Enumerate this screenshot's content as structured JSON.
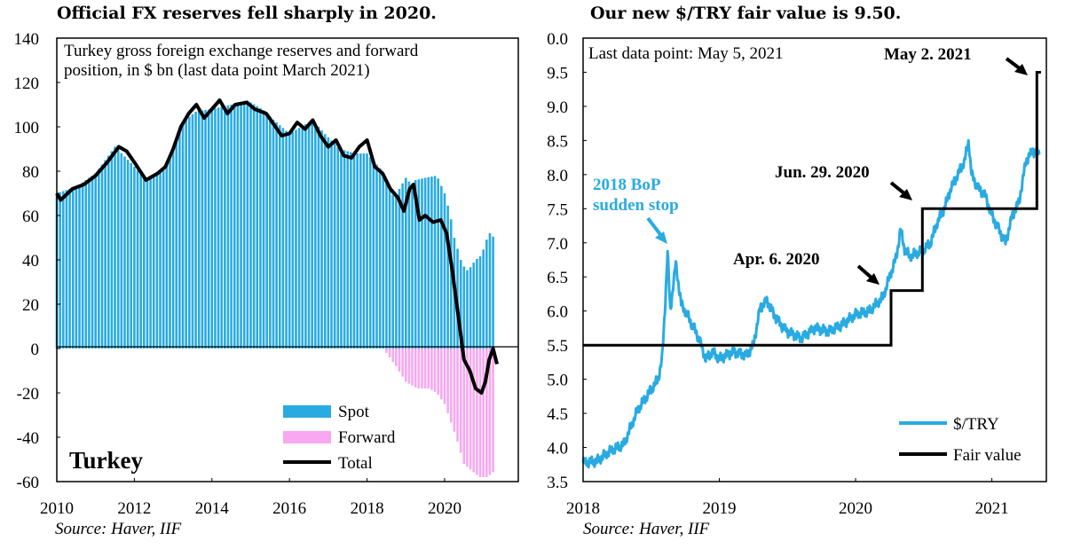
{
  "chart_data": [
    {
      "type": "bar",
      "title": "Official FX reserves fell sharply in 2020.",
      "source": "Source: Haver, IIF",
      "annotation": "Turkey gross foreign exchange reserves and forward position, in $ bn (last data point March 2021)",
      "country_label": "Turkey",
      "xlim": [
        2010,
        2021.9
      ],
      "ylim": [
        -60,
        140
      ],
      "x_ticks": [
        "2010",
        "2012",
        "2014",
        "2016",
        "2018",
        "2020"
      ],
      "y_ticks": [
        "140",
        "120",
        "100",
        "80",
        "60",
        "40",
        "20",
        "0",
        "-20",
        "-40",
        "-60"
      ],
      "grid": false,
      "legend_position": "bottom-right",
      "colors": {
        "spot": "#29abe2",
        "forward": "#f7a8f0",
        "total": "#000000"
      },
      "series": [
        {
          "name": "Spot",
          "type": "bar",
          "points": [
            [
              2010.0,
              70
            ],
            [
              2010.5,
              73
            ],
            [
              2011.0,
              79
            ],
            [
              2011.5,
              91
            ],
            [
              2011.9,
              84
            ],
            [
              2012.3,
              76
            ],
            [
              2012.7,
              80
            ],
            [
              2013.0,
              90
            ],
            [
              2013.3,
              103
            ],
            [
              2013.6,
              107
            ],
            [
              2014.0,
              108
            ],
            [
              2014.5,
              110
            ],
            [
              2014.9,
              112
            ],
            [
              2015.3,
              108
            ],
            [
              2015.6,
              103
            ],
            [
              2016.0,
              97
            ],
            [
              2016.3,
              100
            ],
            [
              2016.6,
              103
            ],
            [
              2016.9,
              97
            ],
            [
              2017.3,
              90
            ],
            [
              2017.7,
              88
            ],
            [
              2018.0,
              88
            ],
            [
              2018.4,
              80
            ],
            [
              2018.7,
              68
            ],
            [
              2019.0,
              77
            ],
            [
              2019.15,
              74
            ],
            [
              2019.25,
              76
            ],
            [
              2019.5,
              77
            ],
            [
              2019.8,
              78
            ],
            [
              2020.0,
              70
            ],
            [
              2020.15,
              60
            ],
            [
              2020.25,
              50
            ],
            [
              2020.45,
              38
            ],
            [
              2020.6,
              35
            ],
            [
              2020.8,
              40
            ],
            [
              2020.95,
              42
            ],
            [
              2021.1,
              50
            ],
            [
              2021.2,
              53
            ],
            [
              2021.3,
              48
            ]
          ]
        },
        {
          "name": "Forward",
          "type": "bar",
          "points": [
            [
              2018.5,
              -2
            ],
            [
              2018.75,
              -8
            ],
            [
              2019.0,
              -15
            ],
            [
              2019.3,
              -18
            ],
            [
              2019.6,
              -18
            ],
            [
              2019.8,
              -20
            ],
            [
              2020.0,
              -25
            ],
            [
              2020.3,
              -40
            ],
            [
              2020.5,
              -52
            ],
            [
              2020.7,
              -55
            ],
            [
              2020.9,
              -58
            ],
            [
              2021.1,
              -58
            ],
            [
              2021.3,
              -55
            ]
          ]
        },
        {
          "name": "Total",
          "type": "line",
          "points": [
            [
              2010.0,
              70
            ],
            [
              2010.1,
              67
            ],
            [
              2010.4,
              72
            ],
            [
              2010.7,
              74
            ],
            [
              2011.0,
              78
            ],
            [
              2011.3,
              84
            ],
            [
              2011.6,
              91
            ],
            [
              2011.8,
              89
            ],
            [
              2012.0,
              84
            ],
            [
              2012.3,
              76
            ],
            [
              2012.6,
              79
            ],
            [
              2012.8,
              82
            ],
            [
              2013.0,
              90
            ],
            [
              2013.2,
              100
            ],
            [
              2013.4,
              106
            ],
            [
              2013.6,
              110
            ],
            [
              2013.8,
              104
            ],
            [
              2014.0,
              108
            ],
            [
              2014.2,
              112
            ],
            [
              2014.4,
              106
            ],
            [
              2014.6,
              110
            ],
            [
              2014.9,
              111
            ],
            [
              2015.1,
              108
            ],
            [
              2015.4,
              106
            ],
            [
              2015.6,
              101
            ],
            [
              2015.8,
              96
            ],
            [
              2016.0,
              97
            ],
            [
              2016.2,
              102
            ],
            [
              2016.4,
              99
            ],
            [
              2016.6,
              103
            ],
            [
              2016.8,
              96
            ],
            [
              2017.0,
              91
            ],
            [
              2017.2,
              94
            ],
            [
              2017.4,
              87
            ],
            [
              2017.6,
              86
            ],
            [
              2017.8,
              91
            ],
            [
              2018.0,
              94
            ],
            [
              2018.2,
              82
            ],
            [
              2018.4,
              79
            ],
            [
              2018.6,
              72
            ],
            [
              2018.8,
              68
            ],
            [
              2018.95,
              62
            ],
            [
              2019.1,
              72
            ],
            [
              2019.2,
              74
            ],
            [
              2019.35,
              58
            ],
            [
              2019.5,
              60
            ],
            [
              2019.7,
              57
            ],
            [
              2019.9,
              58
            ],
            [
              2020.05,
              52
            ],
            [
              2020.2,
              35
            ],
            [
              2020.35,
              15
            ],
            [
              2020.5,
              -5
            ],
            [
              2020.65,
              -10
            ],
            [
              2020.8,
              -18
            ],
            [
              2020.95,
              -20
            ],
            [
              2021.05,
              -15
            ],
            [
              2021.15,
              -5
            ],
            [
              2021.25,
              0
            ],
            [
              2021.35,
              -7
            ]
          ]
        }
      ]
    },
    {
      "type": "line",
      "title": "Our new $/TRY fair value is 9.50.",
      "source": "Source: Haver, IIF",
      "annotation": "Last data point: May 5, 2021",
      "xlim": [
        2018.0,
        2021.4
      ],
      "ylim": [
        3.5,
        10.0
      ],
      "x_ticks": [
        "2018",
        "2019",
        "2020",
        "2021"
      ],
      "y_ticks": [
        "0.0",
        "9.5",
        "9.0",
        "8.5",
        "8.0",
        "7.5",
        "7.0",
        "6.5",
        "6.0",
        "5.5",
        "5.0",
        "4.5",
        "4.0",
        "3.5"
      ],
      "grid": false,
      "legend_position": "bottom-right",
      "colors": {
        "usdtry": "#29abe2",
        "fair_value": "#000000",
        "callout_2018": "#29abe2"
      },
      "callouts": [
        {
          "text": "2018 BoP",
          "text2": "sudden stop",
          "color": "#29abe2"
        },
        {
          "text": "Apr. 6. 2020",
          "color": "#000000"
        },
        {
          "text": "Jun. 29. 2020",
          "color": "#000000"
        },
        {
          "text": "May 2. 2021",
          "color": "#000000"
        }
      ],
      "series": [
        {
          "name": "$/TRY",
          "points": [
            [
              2018.0,
              3.78
            ],
            [
              2018.1,
              3.8
            ],
            [
              2018.2,
              3.95
            ],
            [
              2018.3,
              4.05
            ],
            [
              2018.35,
              4.3
            ],
            [
              2018.4,
              4.55
            ],
            [
              2018.45,
              4.7
            ],
            [
              2018.5,
              4.85
            ],
            [
              2018.55,
              5.0
            ],
            [
              2018.58,
              5.3
            ],
            [
              2018.6,
              6.0
            ],
            [
              2018.62,
              6.88
            ],
            [
              2018.64,
              6.0
            ],
            [
              2018.68,
              6.7
            ],
            [
              2018.72,
              6.1
            ],
            [
              2018.75,
              6.0
            ],
            [
              2018.8,
              5.8
            ],
            [
              2018.85,
              5.6
            ],
            [
              2018.9,
              5.3
            ],
            [
              2018.95,
              5.4
            ],
            [
              2019.0,
              5.3
            ],
            [
              2019.1,
              5.4
            ],
            [
              2019.2,
              5.35
            ],
            [
              2019.25,
              5.5
            ],
            [
              2019.3,
              6.05
            ],
            [
              2019.35,
              6.15
            ],
            [
              2019.4,
              5.95
            ],
            [
              2019.45,
              5.8
            ],
            [
              2019.5,
              5.7
            ],
            [
              2019.55,
              5.65
            ],
            [
              2019.6,
              5.6
            ],
            [
              2019.7,
              5.75
            ],
            [
              2019.8,
              5.7
            ],
            [
              2019.9,
              5.8
            ],
            [
              2020.0,
              5.95
            ],
            [
              2020.1,
              6.0
            ],
            [
              2020.2,
              6.2
            ],
            [
              2020.25,
              6.5
            ],
            [
              2020.3,
              6.8
            ],
            [
              2020.33,
              7.2
            ],
            [
              2020.36,
              6.9
            ],
            [
              2020.4,
              6.8
            ],
            [
              2020.45,
              6.85
            ],
            [
              2020.5,
              6.9
            ],
            [
              2020.55,
              7.0
            ],
            [
              2020.6,
              7.3
            ],
            [
              2020.65,
              7.5
            ],
            [
              2020.7,
              7.8
            ],
            [
              2020.75,
              8.0
            ],
            [
              2020.8,
              8.2
            ],
            [
              2020.83,
              8.5
            ],
            [
              2020.85,
              8.0
            ],
            [
              2020.9,
              7.8
            ],
            [
              2020.95,
              7.7
            ],
            [
              2021.0,
              7.4
            ],
            [
              2021.05,
              7.2
            ],
            [
              2021.1,
              7.0
            ],
            [
              2021.15,
              7.4
            ],
            [
              2021.2,
              7.6
            ],
            [
              2021.25,
              8.2
            ],
            [
              2021.3,
              8.35
            ],
            [
              2021.35,
              8.3
            ]
          ]
        },
        {
          "name": "Fair value",
          "step": true,
          "points": [
            [
              2018.0,
              5.5
            ],
            [
              2020.26,
              5.5
            ],
            [
              2020.26,
              6.3
            ],
            [
              2020.49,
              6.3
            ],
            [
              2020.49,
              7.5
            ],
            [
              2021.33,
              7.5
            ],
            [
              2021.33,
              9.5
            ],
            [
              2021.36,
              9.5
            ]
          ]
        }
      ]
    }
  ]
}
